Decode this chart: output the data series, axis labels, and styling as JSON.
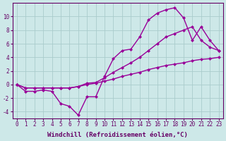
{
  "xlabel": "Windchill (Refroidissement éolien,°C)",
  "hours": [
    0,
    1,
    2,
    3,
    4,
    5,
    6,
    7,
    8,
    9,
    10,
    11,
    12,
    13,
    14,
    15,
    16,
    17,
    18,
    19,
    20,
    21,
    22,
    23
  ],
  "line1": [
    0,
    -1.0,
    -1.0,
    -0.8,
    -1.0,
    -2.8,
    -3.2,
    -4.5,
    -1.8,
    -1.8,
    1.2,
    3.8,
    5.0,
    5.2,
    7.0,
    9.5,
    10.5,
    11.0,
    11.3,
    9.8,
    6.5,
    8.5,
    6.5,
    5.0
  ],
  "line2": [
    0,
    -0.5,
    -0.5,
    -0.5,
    -0.5,
    -0.5,
    -0.5,
    -0.3,
    0.0,
    0.2,
    0.5,
    0.8,
    1.2,
    1.5,
    1.8,
    2.2,
    2.5,
    2.8,
    3.0,
    3.2,
    3.5,
    3.7,
    3.8,
    4.0
  ],
  "line3": [
    0,
    -0.5,
    -0.5,
    -0.5,
    -0.5,
    -0.5,
    -0.5,
    -0.3,
    0.2,
    0.3,
    1.0,
    1.8,
    2.5,
    3.2,
    4.0,
    5.0,
    6.0,
    7.0,
    7.5,
    8.0,
    8.5,
    6.5,
    5.5,
    5.0
  ],
  "bg_color": "#cde8e8",
  "line_color": "#990099",
  "grid_color": "#aacccc",
  "ylim": [
    -5,
    12
  ],
  "yticks": [
    -4,
    -2,
    0,
    2,
    4,
    6,
    8,
    10
  ],
  "xticks": [
    0,
    1,
    2,
    3,
    4,
    5,
    6,
    7,
    8,
    9,
    10,
    11,
    12,
    13,
    14,
    15,
    16,
    17,
    18,
    19,
    20,
    21,
    22,
    23
  ],
  "markersize": 2.5,
  "linewidth": 1.0,
  "axis_color": "#660066",
  "tick_fontsize": 5.5,
  "xlabel_fontsize": 6.5
}
